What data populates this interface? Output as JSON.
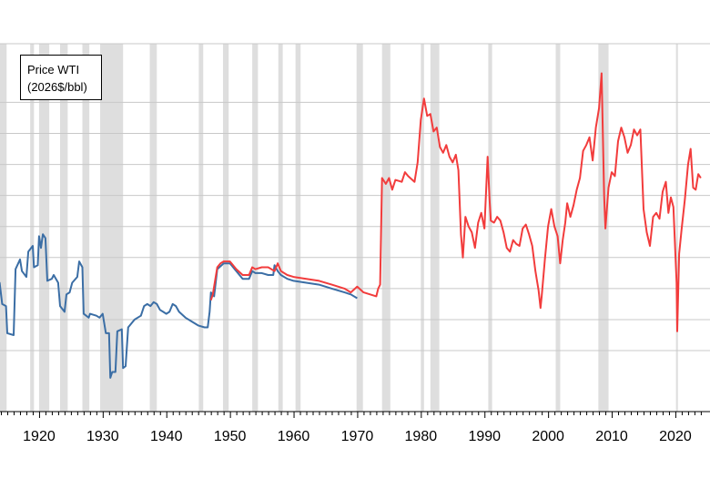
{
  "chart_data": {
    "type": "line",
    "title": "",
    "xlabel": "",
    "ylabel": "",
    "legend": {
      "line1": "Price WTI",
      "line2": "(2026$/bbl)",
      "placement": "top-left"
    },
    "x_range": [
      1913,
      2024
    ],
    "y_range": [
      0,
      160
    ],
    "y_gridlines": [
      35,
      51,
      67,
      83,
      99,
      115,
      131,
      147,
      163
    ],
    "x_tick_labels": [
      "1920",
      "1930",
      "1940",
      "1950",
      "1960",
      "1970",
      "1980",
      "1990",
      "2000",
      "2010",
      "2020"
    ],
    "x_tick_values": [
      1920,
      1930,
      1940,
      1950,
      1960,
      1970,
      1980,
      1990,
      2000,
      2010,
      2020
    ],
    "grid": true,
    "recession_bands": [
      [
        1913.0,
        1914.9
      ],
      [
        1918.6,
        1919.2
      ],
      [
        1920.0,
        1921.6
      ],
      [
        1923.3,
        1924.5
      ],
      [
        1926.8,
        1927.9
      ],
      [
        1929.6,
        1933.2
      ],
      [
        1937.4,
        1938.5
      ],
      [
        1945.1,
        1945.8
      ],
      [
        1948.9,
        1949.8
      ],
      [
        1953.5,
        1954.4
      ],
      [
        1957.6,
        1958.3
      ],
      [
        1960.3,
        1961.1
      ],
      [
        1969.9,
        1970.9
      ],
      [
        1973.9,
        1975.2
      ],
      [
        1980.0,
        1980.5
      ],
      [
        1981.5,
        1982.9
      ],
      [
        1990.6,
        1991.2
      ],
      [
        2001.2,
        2001.9
      ],
      [
        2007.9,
        2009.5
      ],
      [
        2020.1,
        2020.4
      ]
    ],
    "colors": {
      "series1": "#3b6ea5",
      "series2": "#f23c3c",
      "band": "#dedede",
      "grid": "#c8c8c8",
      "axis": "#000000"
    },
    "series": [
      {
        "color": "#3b6ea5",
        "points": [
          [
            1913.0,
            71
          ],
          [
            1913.8,
            70
          ],
          [
            1914.2,
            59
          ],
          [
            1914.8,
            58
          ],
          [
            1915.0,
            44
          ],
          [
            1916.0,
            43
          ],
          [
            1916.3,
            77
          ],
          [
            1917.0,
            82
          ],
          [
            1917.3,
            76
          ],
          [
            1918.0,
            73
          ],
          [
            1918.3,
            86
          ],
          [
            1919.0,
            89
          ],
          [
            1919.2,
            78
          ],
          [
            1919.8,
            79
          ],
          [
            1920.0,
            94
          ],
          [
            1920.3,
            88
          ],
          [
            1920.6,
            95
          ],
          [
            1921.0,
            93
          ],
          [
            1921.3,
            71
          ],
          [
            1922.0,
            72
          ],
          [
            1922.3,
            74
          ],
          [
            1923.0,
            70
          ],
          [
            1923.3,
            58
          ],
          [
            1924.0,
            55
          ],
          [
            1924.3,
            64
          ],
          [
            1924.8,
            65
          ],
          [
            1925.2,
            70
          ],
          [
            1926.0,
            73
          ],
          [
            1926.3,
            81
          ],
          [
            1926.8,
            78
          ],
          [
            1927.0,
            54
          ],
          [
            1927.8,
            52
          ],
          [
            1928.0,
            54
          ],
          [
            1929.0,
            53
          ],
          [
            1929.5,
            52
          ],
          [
            1930.0,
            54
          ],
          [
            1930.5,
            44
          ],
          [
            1931.0,
            44
          ],
          [
            1931.2,
            21
          ],
          [
            1931.5,
            24
          ],
          [
            1932.0,
            24
          ],
          [
            1932.3,
            45
          ],
          [
            1933.0,
            46
          ],
          [
            1933.2,
            26
          ],
          [
            1933.6,
            27
          ],
          [
            1934.0,
            47
          ],
          [
            1935.0,
            51
          ],
          [
            1935.5,
            52
          ],
          [
            1936.0,
            53
          ],
          [
            1936.5,
            58
          ],
          [
            1937.0,
            59
          ],
          [
            1937.5,
            58
          ],
          [
            1938.0,
            60
          ],
          [
            1938.5,
            59
          ],
          [
            1939.0,
            56
          ],
          [
            1939.5,
            55
          ],
          [
            1940.0,
            54
          ],
          [
            1940.5,
            55
          ],
          [
            1941.0,
            59
          ],
          [
            1941.5,
            58
          ],
          [
            1942.0,
            55
          ],
          [
            1943.0,
            52
          ],
          [
            1944.0,
            50
          ],
          [
            1945.0,
            48
          ],
          [
            1946.0,
            47
          ],
          [
            1946.5,
            47
          ],
          [
            1946.8,
            55
          ],
          [
            1947.0,
            65
          ],
          [
            1947.5,
            63
          ],
          [
            1948.0,
            77
          ],
          [
            1949.0,
            80
          ],
          [
            1950.0,
            80
          ],
          [
            1951.0,
            76
          ],
          [
            1952.0,
            72
          ],
          [
            1953.0,
            72
          ],
          [
            1953.5,
            76
          ],
          [
            1954.0,
            75
          ],
          [
            1955.0,
            75
          ],
          [
            1956.0,
            74
          ],
          [
            1956.8,
            74
          ],
          [
            1957.0,
            79
          ],
          [
            1957.5,
            76
          ],
          [
            1958.0,
            74
          ],
          [
            1959.0,
            72
          ],
          [
            1960.0,
            71
          ],
          [
            1962.0,
            70
          ],
          [
            1964.0,
            69
          ],
          [
            1966.0,
            67
          ],
          [
            1968.0,
            65
          ],
          [
            1969.0,
            64
          ],
          [
            1970.0,
            62
          ]
        ]
      },
      {
        "color": "#f23c3c",
        "points": [
          [
            1947.0,
            61
          ],
          [
            1947.3,
            64
          ],
          [
            1947.6,
            70
          ],
          [
            1948.0,
            78
          ],
          [
            1948.5,
            80
          ],
          [
            1949.0,
            81
          ],
          [
            1950.0,
            81
          ],
          [
            1951.0,
            77
          ],
          [
            1952.0,
            74
          ],
          [
            1953.0,
            74
          ],
          [
            1953.5,
            78
          ],
          [
            1954.0,
            77
          ],
          [
            1955.0,
            78
          ],
          [
            1956.0,
            78
          ],
          [
            1957.0,
            76
          ],
          [
            1957.5,
            80
          ],
          [
            1958.0,
            76
          ],
          [
            1959.0,
            74
          ],
          [
            1960.0,
            73
          ],
          [
            1962.0,
            72
          ],
          [
            1964.0,
            71
          ],
          [
            1966.0,
            69
          ],
          [
            1968.0,
            67
          ],
          [
            1969.0,
            65
          ],
          [
            1970.0,
            68
          ],
          [
            1971.0,
            65
          ],
          [
            1973.0,
            63
          ],
          [
            1973.3,
            67
          ],
          [
            1973.6,
            69
          ],
          [
            1973.9,
            124
          ],
          [
            1974.5,
            121
          ],
          [
            1975.0,
            124
          ],
          [
            1975.5,
            118
          ],
          [
            1976.0,
            123
          ],
          [
            1977.0,
            122
          ],
          [
            1977.5,
            127
          ],
          [
            1978.0,
            125
          ],
          [
            1979.0,
            122
          ],
          [
            1979.5,
            132
          ],
          [
            1980.0,
            154
          ],
          [
            1980.5,
            165
          ],
          [
            1981.0,
            156
          ],
          [
            1981.5,
            157
          ],
          [
            1982.0,
            148
          ],
          [
            1982.5,
            150
          ],
          [
            1983.0,
            140
          ],
          [
            1983.5,
            137
          ],
          [
            1984.0,
            141
          ],
          [
            1984.5,
            135
          ],
          [
            1985.0,
            132
          ],
          [
            1985.5,
            136
          ],
          [
            1985.9,
            128
          ],
          [
            1986.3,
            95
          ],
          [
            1986.6,
            83
          ],
          [
            1987.0,
            104
          ],
          [
            1987.5,
            99
          ],
          [
            1988.0,
            96
          ],
          [
            1988.5,
            88
          ],
          [
            1989.0,
            101
          ],
          [
            1989.5,
            106
          ],
          [
            1990.0,
            98
          ],
          [
            1990.5,
            135
          ],
          [
            1990.8,
            113
          ],
          [
            1991.0,
            102
          ],
          [
            1991.5,
            101
          ],
          [
            1992.0,
            104
          ],
          [
            1992.5,
            102
          ],
          [
            1993.0,
            96
          ],
          [
            1993.5,
            88
          ],
          [
            1994.0,
            86
          ],
          [
            1994.5,
            92
          ],
          [
            1995.0,
            90
          ],
          [
            1995.5,
            89
          ],
          [
            1996.0,
            98
          ],
          [
            1996.5,
            100
          ],
          [
            1997.0,
            95
          ],
          [
            1997.5,
            89
          ],
          [
            1998.0,
            76
          ],
          [
            1998.5,
            66
          ],
          [
            1998.8,
            57
          ],
          [
            1999.0,
            63
          ],
          [
            1999.5,
            82
          ],
          [
            2000.0,
            99
          ],
          [
            2000.5,
            108
          ],
          [
            2001.0,
            99
          ],
          [
            2001.5,
            94
          ],
          [
            2001.9,
            80
          ],
          [
            2002.3,
            92
          ],
          [
            2002.7,
            101
          ],
          [
            2003.0,
            111
          ],
          [
            2003.5,
            104
          ],
          [
            2004.0,
            110
          ],
          [
            2004.5,
            118
          ],
          [
            2005.0,
            124
          ],
          [
            2005.5,
            138
          ],
          [
            2006.0,
            141
          ],
          [
            2006.5,
            145
          ],
          [
            2007.0,
            133
          ],
          [
            2007.5,
            150
          ],
          [
            2008.0,
            160
          ],
          [
            2008.4,
            178
          ],
          [
            2008.8,
            115
          ],
          [
            2009.0,
            98
          ],
          [
            2009.5,
            119
          ],
          [
            2010.0,
            127
          ],
          [
            2010.5,
            125
          ],
          [
            2011.0,
            143
          ],
          [
            2011.5,
            150
          ],
          [
            2012.0,
            145
          ],
          [
            2012.5,
            137
          ],
          [
            2013.0,
            141
          ],
          [
            2013.5,
            149
          ],
          [
            2014.0,
            146
          ],
          [
            2014.5,
            149
          ],
          [
            2015.0,
            108
          ],
          [
            2015.5,
            96
          ],
          [
            2016.0,
            89
          ],
          [
            2016.5,
            104
          ],
          [
            2017.0,
            106
          ],
          [
            2017.5,
            103
          ],
          [
            2018.0,
            117
          ],
          [
            2018.5,
            122
          ],
          [
            2018.9,
            106
          ],
          [
            2019.3,
            114
          ],
          [
            2019.7,
            109
          ],
          [
            2020.2,
            70
          ],
          [
            2020.3,
            45
          ],
          [
            2020.6,
            85
          ],
          [
            2021.0,
            98
          ],
          [
            2021.5,
            113
          ],
          [
            2022.0,
            131
          ],
          [
            2022.4,
            139
          ],
          [
            2022.8,
            119
          ],
          [
            2023.2,
            118
          ],
          [
            2023.6,
            126
          ],
          [
            2024.0,
            124
          ]
        ]
      }
    ]
  }
}
